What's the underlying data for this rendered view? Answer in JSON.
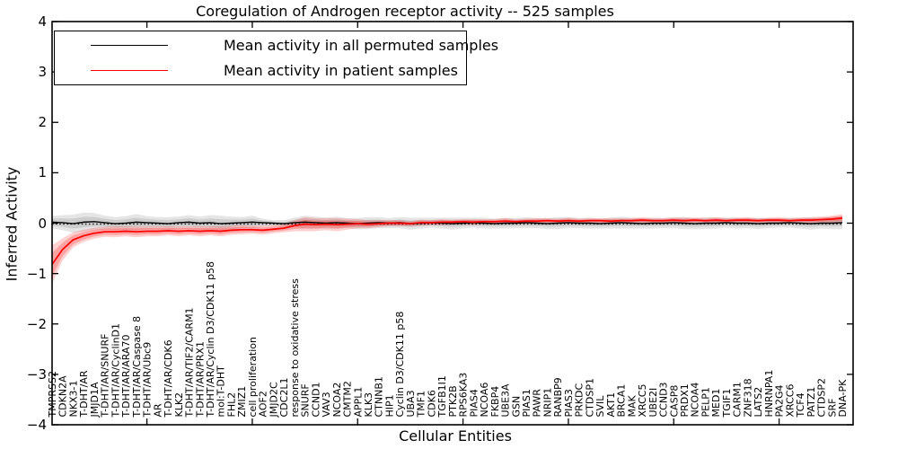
{
  "title": "Coregulation of Androgen receptor activity -- 525 samples",
  "axes": {
    "ylabel": "Inferred Activity",
    "xlabel": "Cellular Entities"
  },
  "legend": {
    "position": "upper left",
    "entries": [
      {
        "label": "Mean activity in all permuted samples",
        "color": "#000000"
      },
      {
        "label": "Mean activity in patient samples",
        "color": "#ff0000"
      }
    ]
  },
  "colors": {
    "patient_line": "#ff0000",
    "permuted_line": "#000000",
    "patient_band": "rgba(255,0,0,0.18)",
    "patient_band_inner": "rgba(255,0,0,0.22)",
    "permuted_band": "rgba(0,0,0,0.10)",
    "frame": "#000000"
  },
  "chart_data": {
    "type": "line",
    "title": "Coregulation of Androgen receptor activity -- 525 samples",
    "xlabel": "Cellular Entities",
    "ylabel": "Inferred Activity",
    "ylim": [
      -4,
      4
    ],
    "grid": false,
    "legend_position": "upper left",
    "zero_line": true,
    "ytick_values": [
      4,
      3,
      2,
      1,
      0,
      -1,
      -2,
      -3,
      -4
    ],
    "ytick_labels": [
      "4",
      "3",
      "2",
      "1",
      "0",
      "−1",
      "−2",
      "−3",
      "−4"
    ],
    "categories": [
      "TMPRSS2",
      "CDKN2A",
      "NKX3-1",
      "T-DHT/AR",
      "JMJD1A",
      "T-DHT/AR/SNURF",
      "T-DHT/AR/CyclinD1",
      "T-DHT/AR/ARA70",
      "T-DHT/AR/Caspase 8",
      "T-DHT/AR/Ubc9",
      "AR",
      "T-DHT/AR/CDK6",
      "KLK2",
      "T-DHT/AR/TIF2/CARM1",
      "T-DHT/AR/PRX1",
      "T-DHT/AR/Cyclin D3/CDK11 p58",
      "mol:T-DHT",
      "FHL2",
      "ZMIZ1",
      "cell proliferation",
      "AOF2",
      "JMJD2C",
      "CDC2L1",
      "response to oxidative stress",
      "SNURF",
      "CCND1",
      "VAV3",
      "NCOA2",
      "CMTM2",
      "APPL1",
      "KLK3",
      "CTNNB1",
      "HIP1",
      "Cyclin D3/CDK11 p58",
      "UBA3",
      "TMF1",
      "CDK6",
      "TGFB1I1",
      "PTK2B",
      "RPS6KA3",
      "PIAS4",
      "NCOA6",
      "FKBP4",
      "UBE3A",
      "GSN",
      "PIAS1",
      "PAWR",
      "NRIP1",
      "RANBP9",
      "PIAS3",
      "PRKDC",
      "CTDSP1",
      "SVIL",
      "AKT1",
      "BRCA1",
      "MAK",
      "XRCC5",
      "UBE2I",
      "CCND3",
      "CASP8",
      "PRDX1",
      "NCOA4",
      "PELP1",
      "MED1",
      "TGIF1",
      "CARM1",
      "ZNF318",
      "LATS2",
      "HNRNPA1",
      "PA2G4",
      "XRCC6",
      "TCF4",
      "PATZ1",
      "CTDSP2",
      "SRF",
      "DNA-PK"
    ],
    "series": [
      {
        "name": "Mean activity in all permuted samples",
        "color": "#000000",
        "values": [
          0.02,
          0.01,
          -0.01,
          0.02,
          0.03,
          0.01,
          -0.01,
          0,
          0.02,
          0.01,
          0,
          -0.01,
          0.01,
          0.02,
          0,
          0.01,
          -0.01,
          0,
          0.01,
          0.02,
          0.01,
          0,
          -0.01,
          0.01,
          0.02,
          0.01,
          0,
          0.01,
          0,
          -0.01,
          0,
          0.01,
          0,
          0.01,
          -0.01,
          0,
          0.01,
          0,
          -0.01,
          0,
          0.01,
          0,
          -0.01,
          0,
          0,
          0.01,
          0,
          -0.01,
          0,
          0.01,
          0,
          0,
          -0.01,
          0,
          0.01,
          0,
          -0.01,
          0,
          0,
          0.01,
          0,
          -0.01,
          0,
          0,
          0.01,
          0,
          0,
          -0.01,
          0,
          0,
          0.01,
          0,
          -0.01,
          0,
          0,
          0.01
        ],
        "band_halfwidth": [
          0.12,
          0.15,
          0.18,
          0.19,
          0.17,
          0.14,
          0.13,
          0.14,
          0.16,
          0.13,
          0.12,
          0.13,
          0.12,
          0.14,
          0.13,
          0.15,
          0.16,
          0.13,
          0.11,
          0.13,
          0.08,
          0.06,
          0.07,
          0.1,
          0.13,
          0.12,
          0.11,
          0.12,
          0.1,
          0.11,
          0.12,
          0.11,
          0.1,
          0.11,
          0.12,
          0.11,
          0.1,
          0.11,
          0.12,
          0.11,
          0.1,
          0.11,
          0.1,
          0.11,
          0.1,
          0.11,
          0.1,
          0.11,
          0.12,
          0.11,
          0.1,
          0.11,
          0.1,
          0.11,
          0.12,
          0.11,
          0.1,
          0.11,
          0.1,
          0.11,
          0.12,
          0.11,
          0.12,
          0.11,
          0.1,
          0.11,
          0.1,
          0.11,
          0.1,
          0.09,
          0.1,
          0.11,
          0.12,
          0.11,
          0.12,
          0.13
        ]
      },
      {
        "name": "Mean activity in patient samples",
        "color": "#ff0000",
        "values": [
          -0.82,
          -0.52,
          -0.33,
          -0.25,
          -0.2,
          -0.17,
          -0.17,
          -0.16,
          -0.17,
          -0.16,
          -0.16,
          -0.15,
          -0.16,
          -0.15,
          -0.16,
          -0.15,
          -0.16,
          -0.14,
          -0.13,
          -0.13,
          -0.14,
          -0.12,
          -0.1,
          -0.05,
          -0.02,
          -0.03,
          -0.02,
          -0.03,
          -0.02,
          -0.01,
          -0.02,
          -0.01,
          0,
          0,
          -0.01,
          0.01,
          0.01,
          0.02,
          0.02,
          0.03,
          0.02,
          0.03,
          0.03,
          0.04,
          0.03,
          0.04,
          0.04,
          0.05,
          0.04,
          0.05,
          0.04,
          0.05,
          0.05,
          0.04,
          0.05,
          0.05,
          0.06,
          0.05,
          0.05,
          0.06,
          0.05,
          0.06,
          0.05,
          0.06,
          0.05,
          0.06,
          0.06,
          0.05,
          0.06,
          0.06,
          0.05,
          0.06,
          0.06,
          0.07,
          0.08,
          0.1
        ],
        "band_halfwidth": [
          0.38,
          0.22,
          0.15,
          0.12,
          0.11,
          0.1,
          0.11,
          0.1,
          0.11,
          0.1,
          0.1,
          0.09,
          0.1,
          0.09,
          0.1,
          0.09,
          0.1,
          0.09,
          0.09,
          0.08,
          0.09,
          0.08,
          0.08,
          0.11,
          0.14,
          0.13,
          0.12,
          0.13,
          0.11,
          0.09,
          0.08,
          0.07,
          0.06,
          0.06,
          0.05,
          0.06,
          0.05,
          0.06,
          0.05,
          0.05,
          0.06,
          0.05,
          0.05,
          0.06,
          0.05,
          0.05,
          0.06,
          0.05,
          0.05,
          0.06,
          0.05,
          0.05,
          0.05,
          0.06,
          0.05,
          0.05,
          0.06,
          0.05,
          0.05,
          0.05,
          0.06,
          0.05,
          0.05,
          0.06,
          0.05,
          0.05,
          0.06,
          0.05,
          0.05,
          0.06,
          0.05,
          0.05,
          0.06,
          0.06,
          0.07,
          0.08
        ]
      }
    ]
  }
}
